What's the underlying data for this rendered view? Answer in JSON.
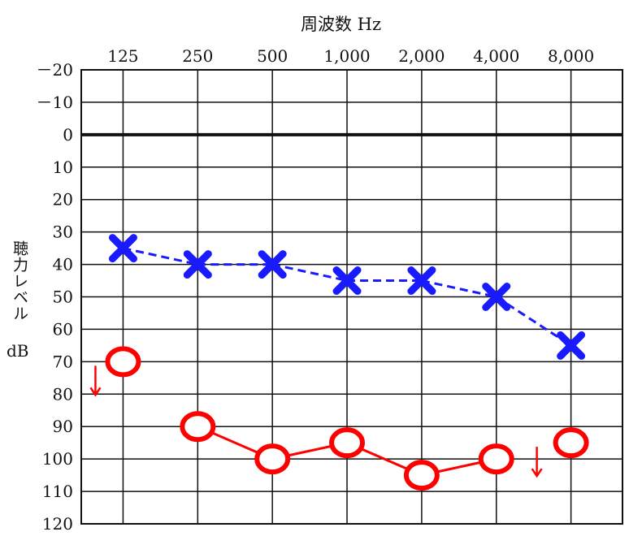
{
  "chart_data": {
    "type": "line",
    "title": "",
    "xlabel": "周波数 Hz",
    "ylabel": "聴力レベル",
    "ylabel_unit": "dB",
    "categories": [
      "125",
      "250",
      "500",
      "1,000",
      "2,000",
      "4,000",
      "8,000"
    ],
    "y_ticks": [
      "－20",
      "－10",
      "0",
      "10",
      "20",
      "30",
      "40",
      "50",
      "60",
      "70",
      "80",
      "90",
      "100",
      "110",
      "120"
    ],
    "ylim": [
      -20,
      120
    ],
    "y_inverted": true,
    "grid": true,
    "series": [
      {
        "marker": "x",
        "line": "dashed",
        "color": "#1a1aff",
        "values": [
          35,
          40,
          40,
          45,
          45,
          50,
          65
        ],
        "no_response": [
          false,
          false,
          false,
          false,
          false,
          false,
          false
        ]
      },
      {
        "marker": "o",
        "line": "solid",
        "color": "#ff0000",
        "values": [
          70,
          90,
          100,
          95,
          105,
          100,
          95
        ],
        "no_response": [
          true,
          false,
          false,
          false,
          false,
          false,
          true
        ],
        "connected": [
          false,
          true,
          true,
          true,
          true,
          true,
          false
        ]
      }
    ]
  }
}
